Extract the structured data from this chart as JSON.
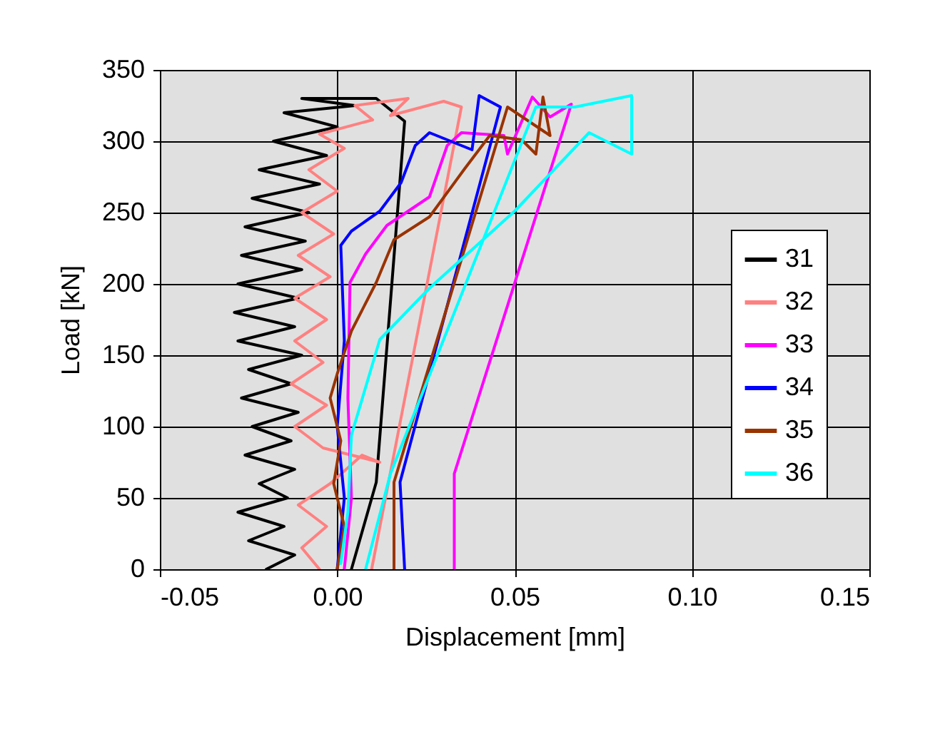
{
  "chart_data": {
    "type": "line",
    "xlabel": "Displacement [mm]",
    "ylabel": "Load [kN]",
    "xlim": [
      -0.05,
      0.15
    ],
    "xticks": [
      -0.05,
      {
        "value": 0,
        "label": "0.00"
      },
      0.05,
      {
        "value": 0.1,
        "label": "0.10"
      },
      0.15
    ],
    "ylim": [
      0,
      350
    ],
    "yticks": [
      0,
      50,
      100,
      150,
      200,
      250,
      300,
      350
    ],
    "grid": true,
    "legend": "right",
    "marker": "none",
    "line_style": "solid",
    "series": [
      {
        "name": "31",
        "color": "#000000",
        "x": [
          -0.02,
          -0.012,
          -0.025,
          -0.015,
          -0.028,
          -0.014,
          -0.022,
          -0.012,
          -0.026,
          -0.013,
          -0.024,
          -0.011,
          -0.027,
          -0.013,
          -0.025,
          -0.01,
          -0.028,
          -0.012,
          -0.029,
          -0.011,
          -0.028,
          -0.01,
          -0.027,
          -0.009,
          -0.026,
          -0.008,
          -0.024,
          -0.005,
          -0.022,
          -0.003,
          -0.018,
          0.0,
          -0.015,
          0.005,
          -0.01,
          0.011,
          0.019,
          0.011,
          0.004
        ],
        "values": [
          0,
          10,
          20,
          30,
          40,
          50,
          60,
          70,
          80,
          90,
          100,
          110,
          120,
          130,
          140,
          150,
          160,
          170,
          180,
          190,
          200,
          210,
          220,
          230,
          240,
          250,
          260,
          270,
          280,
          290,
          300,
          310,
          320,
          325,
          330,
          330,
          314,
          61,
          0
        ]
      },
      {
        "name": "32",
        "color": "#ff8080",
        "x": [
          -0.005,
          -0.01,
          -0.003,
          -0.011,
          -0.002,
          0.007,
          0.012,
          -0.004,
          -0.012,
          -0.003,
          -0.013,
          -0.004,
          -0.012,
          -0.003,
          -0.012,
          -0.002,
          -0.011,
          -0.001,
          -0.01,
          0.0,
          -0.008,
          0.002,
          -0.005,
          0.01,
          0.005,
          0.02,
          0.015,
          0.03,
          0.035,
          0.0097
        ],
        "values": [
          0,
          15,
          30,
          45,
          60,
          80,
          75,
          85,
          100,
          115,
          130,
          145,
          160,
          175,
          190,
          205,
          220,
          235,
          250,
          265,
          280,
          295,
          305,
          315,
          325,
          330,
          318,
          328,
          324,
          0
        ]
      },
      {
        "name": "33",
        "color": "#ff00ff",
        "x": [
          0.002,
          0.004,
          0.003,
          0.0036,
          0.008,
          0.014,
          0.026,
          0.031,
          0.035,
          0.047,
          0.048,
          0.055,
          0.06,
          0.066,
          0.033,
          0.033
        ],
        "values": [
          0,
          50,
          120,
          201,
          221,
          241,
          261,
          297,
          306,
          304,
          291,
          331,
          317,
          326,
          67,
          0
        ]
      },
      {
        "name": "34",
        "color": "#0000ff",
        "x": [
          0.0,
          0.002,
          0.0,
          0.002,
          0.001,
          0.004,
          0.012,
          0.018,
          0.022,
          0.026,
          0.038,
          0.04,
          0.046,
          0.0177,
          0.019
        ],
        "values": [
          0,
          50,
          100,
          160,
          227,
          237,
          251,
          271,
          297,
          306,
          294,
          332,
          324,
          61,
          0
        ]
      },
      {
        "name": "35",
        "color": "#993300",
        "x": [
          0.0,
          0.002,
          -0.001,
          0.001,
          -0.002,
          0.0,
          0.004,
          0.011,
          0.016,
          0.026,
          0.036,
          0.043,
          0.052,
          0.056,
          0.058,
          0.06,
          0.048,
          0.016,
          0.016
        ],
        "values": [
          0,
          30,
          60,
          90,
          120,
          137,
          167,
          201,
          231,
          247,
          281,
          304,
          301,
          291,
          331,
          304,
          324,
          61,
          0
        ]
      },
      {
        "name": "36",
        "color": "#00ffff",
        "x": [
          0.001,
          0.003,
          0.004,
          0.012,
          0.026,
          0.05,
          0.071,
          0.083,
          0.083,
          0.067,
          0.056,
          0.015,
          0.008
        ],
        "values": [
          4,
          40,
          94,
          161,
          197,
          251,
          306,
          291,
          332,
          324,
          324,
          67,
          0
        ]
      }
    ]
  }
}
